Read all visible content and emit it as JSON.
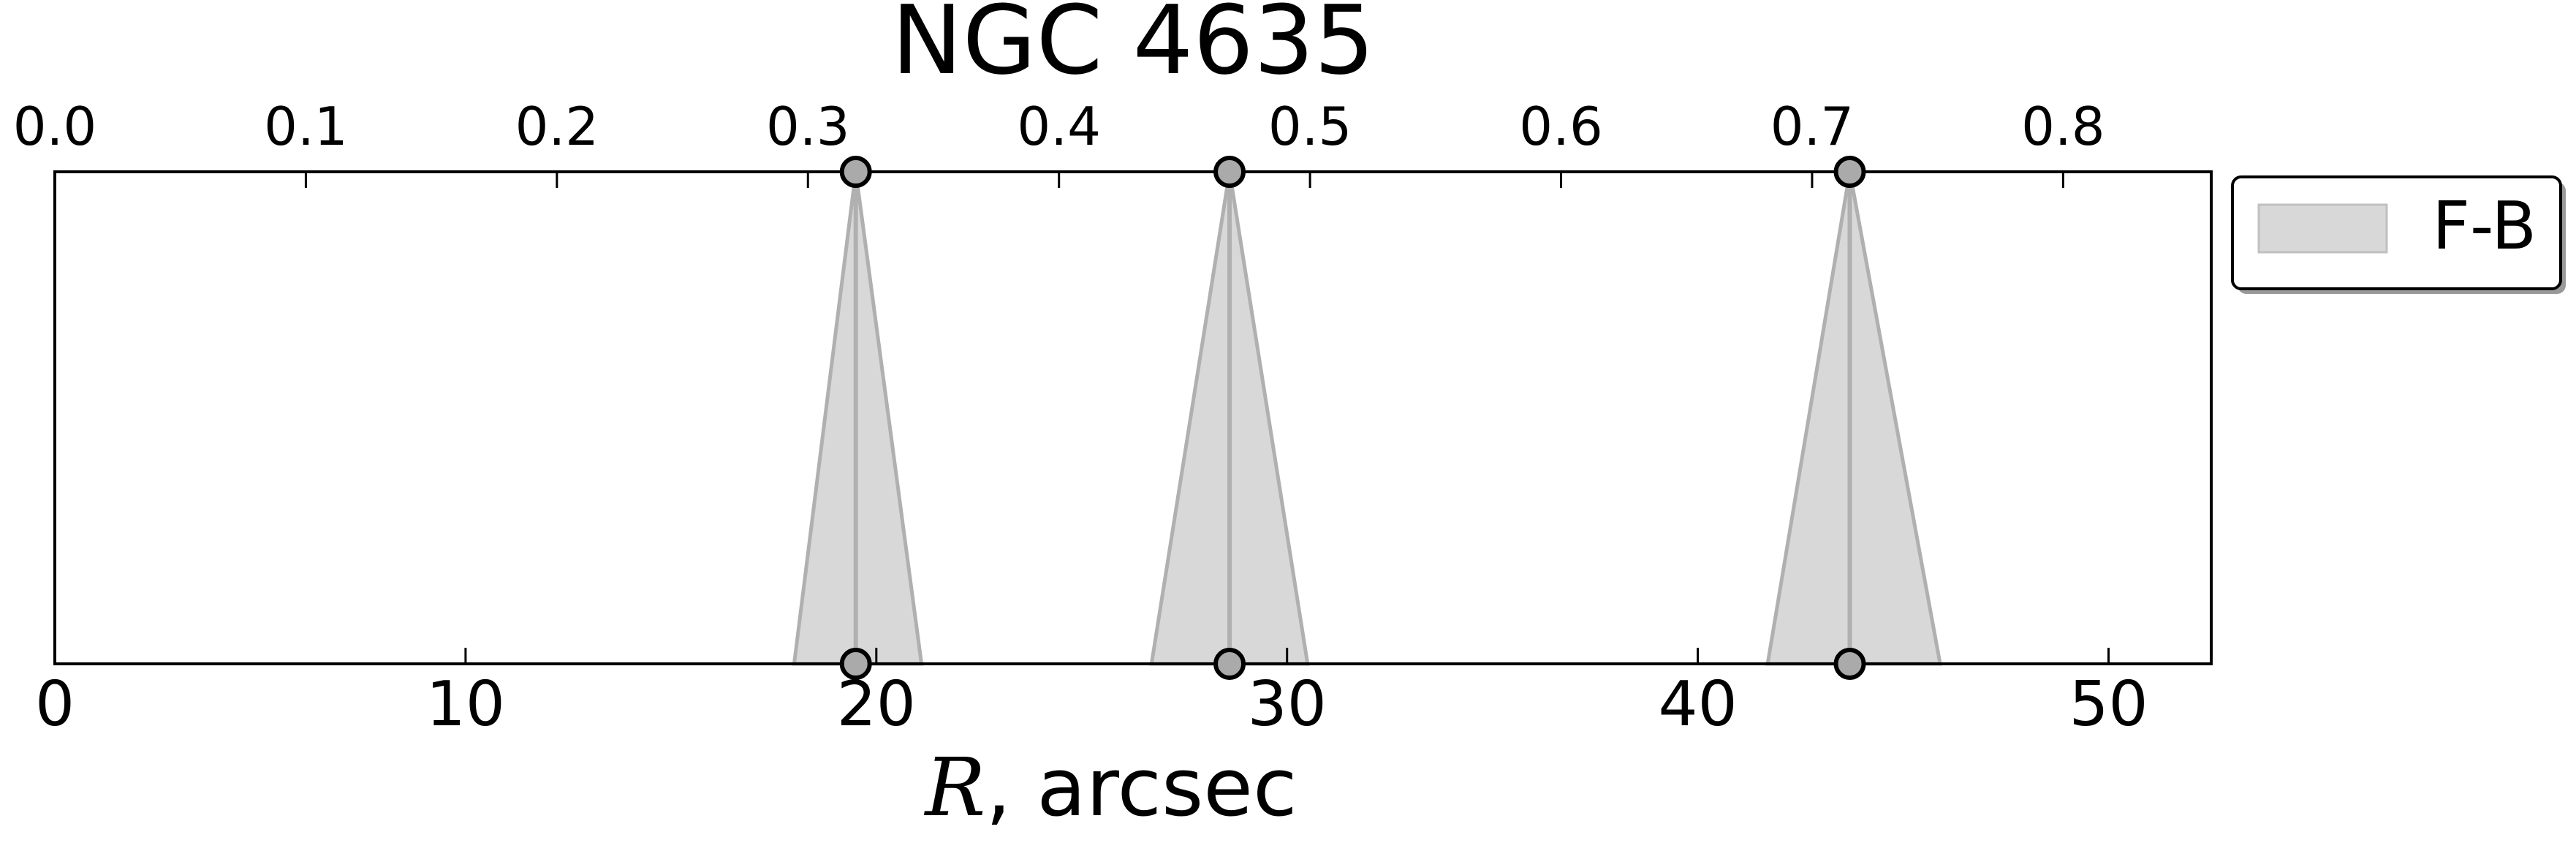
{
  "chart_data": {
    "type": "area",
    "title": "NGC 4635",
    "xlabel_italic": "R",
    "xlabel_rest": ", arcsec",
    "xlim": [
      0,
      52.5
    ],
    "x_ticks": [
      "0",
      "10",
      "20",
      "30",
      "40",
      "50"
    ],
    "x_tick_values": [
      0,
      10,
      20,
      30,
      40,
      50
    ],
    "top_xlim": [
      0,
      0.859
    ],
    "top_ticks": [
      "0.0",
      "0.1",
      "0.2",
      "0.3",
      "0.4",
      "0.5",
      "0.6",
      "0.7",
      "0.8"
    ],
    "top_tick_values": [
      0.0,
      0.1,
      0.2,
      0.3,
      0.4,
      0.5,
      0.6,
      0.7,
      0.8
    ],
    "grid": false,
    "legend_position": "outside-right-top",
    "series": [
      {
        "name": "F-B",
        "color": "#c8c8c8",
        "line_color": "#b0b0b0",
        "marker_color": "#aaaaaa",
        "features": [
          {
            "r": 19.5,
            "left": 18.0,
            "right": 21.1
          },
          {
            "r": 28.6,
            "left": 26.7,
            "right": 30.5
          },
          {
            "r": 43.7,
            "left": 41.7,
            "right": 45.9
          }
        ]
      }
    ]
  }
}
